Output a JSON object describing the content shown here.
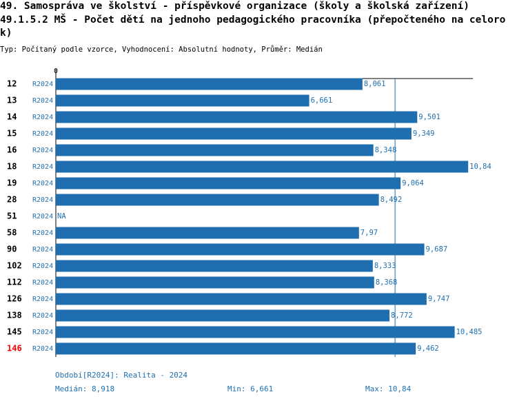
{
  "chart_data": {
    "type": "bar",
    "orientation": "horizontal",
    "title": "49. Samospráva ve školství - příspěvkové organizace (školy a školská zařízení)",
    "subtitle": "49.1.5.2 MŠ - Počet dětí na jednoho pedagogického pracovníka (přepočteného na celorok)",
    "description": "Typ: Počítaný podle vzorce, Vyhodnocení: Absolutní hodnoty, Průměr: Medián",
    "categories": [
      "12",
      "13",
      "14",
      "15",
      "16",
      "18",
      "19",
      "28",
      "51",
      "58",
      "90",
      "102",
      "112",
      "126",
      "138",
      "145",
      "146"
    ],
    "series_label": "R2024",
    "values": [
      8.061,
      6.661,
      9.501,
      9.349,
      8.348,
      10.84,
      9.064,
      8.492,
      null,
      7.97,
      9.687,
      8.333,
      8.368,
      9.747,
      8.772,
      10.485,
      9.462
    ],
    "value_labels": [
      "8,061",
      "6,661",
      "9,501",
      "9,349",
      "8,348",
      "10,84",
      "9,064",
      "8,492",
      "NA",
      "7,97",
      "9,687",
      "8,333",
      "8,368",
      "9,747",
      "8,772",
      "10,485",
      "9,462"
    ],
    "color": "#1f6fb0",
    "highlight": "146",
    "highlight_color": "#ff0000",
    "xlim": [
      0,
      11
    ],
    "xticks": [
      0
    ],
    "median": {
      "value": 8.918,
      "label": "Medián: 8,918"
    },
    "period": "Období[R2024]: Realita - 2024",
    "min_label": "Min: 6,661",
    "max_label": "Max: 10,84"
  }
}
